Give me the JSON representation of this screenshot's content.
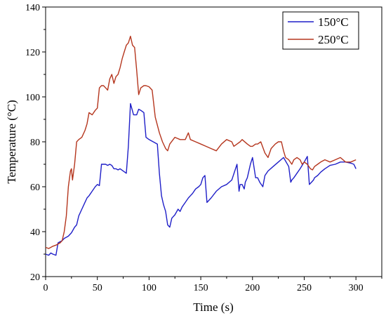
{
  "chart_data": {
    "type": "line",
    "title": "",
    "xlabel": "Time (s)",
    "ylabel": "Temperature (°C)",
    "xlim": [
      0,
      325
    ],
    "ylim": [
      20,
      140
    ],
    "xticks": [
      0,
      50,
      100,
      150,
      200,
      250,
      300
    ],
    "yticks": [
      20,
      40,
      60,
      80,
      100,
      120,
      140
    ],
    "grid": false,
    "legend_position": "top-right",
    "series": [
      {
        "name": "150°C",
        "color": "#1f1fc8",
        "x": [
          0,
          3,
          5,
          7,
          10,
          12,
          14,
          16,
          18,
          20,
          22,
          25,
          28,
          30,
          32,
          35,
          38,
          40,
          42,
          45,
          48,
          50,
          52,
          53,
          54,
          55,
          58,
          60,
          62,
          64,
          66,
          68,
          70,
          72,
          75,
          78,
          80,
          82,
          85,
          88,
          90,
          92,
          95,
          97,
          100,
          102,
          104,
          106,
          108,
          110,
          112,
          114,
          116,
          118,
          120,
          122,
          125,
          128,
          130,
          132,
          135,
          138,
          140,
          142,
          145,
          148,
          150,
          152,
          154,
          156,
          160,
          165,
          170,
          175,
          180,
          185,
          187,
          188,
          190,
          192,
          193,
          195,
          198,
          200,
          203,
          205,
          207,
          210,
          212,
          215,
          220,
          225,
          230,
          235,
          237,
          238,
          240,
          243,
          246,
          250,
          253,
          255,
          257,
          259,
          260,
          263,
          266,
          270,
          275,
          280,
          285,
          290,
          295,
          298,
          300
        ],
        "y": [
          30,
          29.5,
          30.5,
          30,
          29.5,
          35,
          35.5,
          36,
          37,
          37.5,
          38,
          39.5,
          42,
          43,
          47,
          50,
          53,
          55,
          56,
          58,
          60,
          61,
          60.5,
          65,
          70,
          70,
          70,
          69.5,
          70,
          69.5,
          68,
          68,
          67.5,
          68,
          67,
          66,
          78,
          97,
          92,
          92,
          94.5,
          94,
          93,
          82,
          81,
          80.5,
          80,
          79.5,
          79,
          66,
          56,
          52,
          49,
          43,
          42,
          46,
          47.5,
          50,
          49,
          51,
          53,
          55,
          56,
          57,
          59,
          60,
          61,
          64,
          65,
          53,
          55,
          58,
          60,
          61,
          63,
          70,
          58,
          61,
          61,
          59,
          62,
          64,
          70,
          73,
          64,
          64,
          62,
          60,
          65,
          67,
          69,
          71,
          73,
          69,
          62,
          63,
          64,
          66,
          68,
          71,
          73.5,
          61,
          62,
          63,
          64,
          65,
          66.5,
          68,
          69.5,
          70,
          71,
          71,
          70.5,
          70,
          68
        ]
      },
      {
        "name": "250°C",
        "color": "#b5361e",
        "x": [
          0,
          3,
          5,
          7,
          10,
          12,
          14,
          16,
          18,
          20,
          22,
          24,
          25,
          26,
          28,
          30,
          32,
          35,
          38,
          40,
          42,
          45,
          48,
          50,
          52,
          54,
          56,
          58,
          60,
          62,
          64,
          66,
          68,
          70,
          72,
          74,
          76,
          78,
          80,
          82,
          84,
          86,
          88,
          90,
          92,
          95,
          97,
          100,
          103,
          106,
          110,
          113,
          116,
          118,
          120,
          125,
          130,
          135,
          138,
          140,
          145,
          150,
          155,
          160,
          165,
          170,
          175,
          180,
          182,
          185,
          188,
          190,
          195,
          198,
          200,
          203,
          205,
          208,
          212,
          215,
          218,
          222,
          225,
          228,
          230,
          232,
          235,
          238,
          240,
          243,
          246,
          248,
          250,
          253,
          256,
          258,
          260,
          263,
          266,
          270,
          275,
          280,
          285,
          290,
          295,
          300
        ],
        "y": [
          33,
          32.5,
          33,
          33.5,
          34,
          34.5,
          35,
          36,
          40,
          47,
          60,
          67,
          68,
          63,
          70,
          80,
          81,
          82,
          85,
          88,
          93,
          92,
          94,
          95,
          104,
          105,
          105,
          104,
          103,
          108,
          110,
          106,
          109,
          110,
          113,
          117,
          120,
          123,
          124,
          127,
          123,
          122,
          112,
          101,
          104,
          105,
          105,
          104.5,
          103,
          91,
          84,
          80,
          77,
          76,
          79,
          82,
          81,
          81,
          84,
          81,
          80,
          79,
          78,
          77,
          76,
          79,
          81,
          80,
          78,
          79,
          80,
          81,
          79,
          78,
          78,
          79,
          79,
          80,
          75,
          73,
          77,
          79,
          80,
          80,
          76,
          73,
          72,
          70,
          72,
          73,
          72,
          70,
          71,
          70,
          68,
          67.5,
          69,
          70,
          71,
          72,
          71,
          72,
          73,
          71,
          71,
          72
        ]
      }
    ]
  }
}
